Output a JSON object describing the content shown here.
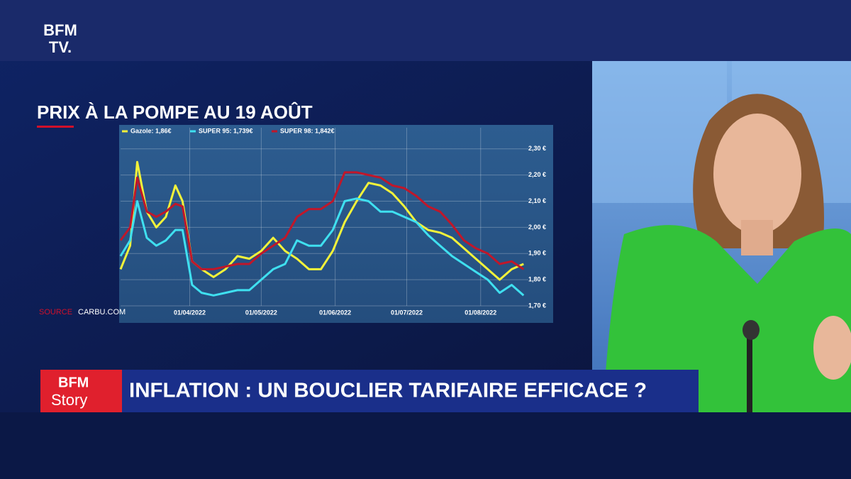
{
  "logo": {
    "line1": "BFM",
    "line2": "TV."
  },
  "graphic_title": "PRIX À LA POMPE AU 19 AOÛT",
  "source": {
    "label": "SOURCE",
    "name": "CARBU.COM"
  },
  "chart_data": {
    "type": "line",
    "x": [
      "03/03/2022",
      "07/03/2022",
      "10/03/2022",
      "14/03/2022",
      "18/03/2022",
      "22/03/2022",
      "26/03/2022",
      "29/03/2022",
      "02/04/2022",
      "06/04/2022",
      "11/04/2022",
      "16/04/2022",
      "21/04/2022",
      "26/04/2022",
      "01/05/2022",
      "06/05/2022",
      "11/05/2022",
      "16/05/2022",
      "21/05/2022",
      "26/05/2022",
      "31/05/2022",
      "05/06/2022",
      "10/06/2022",
      "15/06/2022",
      "20/06/2022",
      "25/06/2022",
      "30/06/2022",
      "05/07/2022",
      "10/07/2022",
      "15/07/2022",
      "20/07/2022",
      "25/07/2022",
      "30/07/2022",
      "04/08/2022",
      "09/08/2022",
      "14/08/2022",
      "19/08/2022"
    ],
    "series": [
      {
        "name": "Gazole: 1,86€",
        "color": "#f2f23a",
        "values": [
          1.84,
          1.93,
          2.25,
          2.06,
          2.0,
          2.04,
          2.16,
          2.1,
          1.87,
          1.84,
          1.81,
          1.84,
          1.89,
          1.88,
          1.91,
          1.96,
          1.91,
          1.88,
          1.84,
          1.84,
          1.91,
          2.02,
          2.1,
          2.17,
          2.16,
          2.13,
          2.08,
          2.02,
          1.99,
          1.98,
          1.96,
          1.92,
          1.88,
          1.84,
          1.8,
          1.84,
          1.86
        ]
      },
      {
        "name": "SUPER 95: 1,739€",
        "color": "#3fe0f0",
        "values": [
          1.89,
          1.95,
          2.1,
          1.96,
          1.93,
          1.95,
          1.99,
          1.99,
          1.78,
          1.75,
          1.74,
          1.75,
          1.76,
          1.76,
          1.8,
          1.84,
          1.86,
          1.95,
          1.93,
          1.93,
          1.99,
          2.1,
          2.11,
          2.1,
          2.06,
          2.06,
          2.04,
          2.02,
          1.97,
          1.93,
          1.89,
          1.86,
          1.83,
          1.8,
          1.75,
          1.78,
          1.74
        ]
      },
      {
        "name": "SUPER 98: 1,842€",
        "color": "#c0172a",
        "values": [
          1.95,
          2.0,
          2.19,
          2.06,
          2.04,
          2.06,
          2.09,
          2.08,
          1.87,
          1.84,
          1.84,
          1.85,
          1.86,
          1.86,
          1.9,
          1.93,
          1.96,
          2.04,
          2.07,
          2.07,
          2.1,
          2.21,
          2.21,
          2.2,
          2.19,
          2.16,
          2.15,
          2.12,
          2.08,
          2.06,
          2.01,
          1.95,
          1.92,
          1.9,
          1.86,
          1.87,
          1.84
        ]
      }
    ],
    "xlim": [
      "03/03/2022",
      "21/08/2022"
    ],
    "xticks": [
      "01/04/2022",
      "01/05/2022",
      "01/06/2022",
      "01/07/2022",
      "01/08/2022"
    ],
    "ylim": [
      1.7,
      2.34
    ],
    "yticks": [
      {
        "value": 1.7,
        "label": "1,70 €"
      },
      {
        "value": 1.8,
        "label": "1,80 €"
      },
      {
        "value": 1.9,
        "label": "1,90 €"
      },
      {
        "value": 2.0,
        "label": "2,00 €"
      },
      {
        "value": 2.1,
        "label": "2,10 €"
      },
      {
        "value": 2.2,
        "label": "2,20 €"
      },
      {
        "value": 2.3,
        "label": "2,30 €"
      }
    ],
    "grid": true
  },
  "banner": {
    "logo_line1": "BFM",
    "logo_line2": "Story",
    "headline": "INFLATION : UN BOUCLIER TARIFAIRE EFFICACE ?"
  }
}
